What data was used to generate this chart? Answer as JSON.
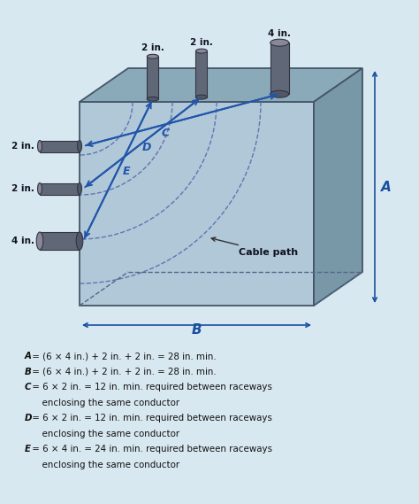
{
  "bg_color": "#d8e8f0",
  "formula_lines": [
    [
      "italic",
      "A",
      " = (6 × 4 in.) + 2 in. + 2 in. = 28 in. min."
    ],
    [
      "italic",
      "B",
      " = (6 × 4 in.) + 2 in. + 2 in. = 28 in. min."
    ],
    [
      "italic",
      "C",
      " = 6 × 2 in. = 12 in. min. required between raceways"
    ],
    [
      "normal",
      "",
      "      enclosing the same conductor"
    ],
    [
      "italic",
      "D",
      " = 6 × 2 in. = 12 in. min. required between raceways"
    ],
    [
      "normal",
      "",
      "      enclosing the same conductor"
    ],
    [
      "italic",
      "E",
      " = 6 × 4 in. = 24 in. min. required between raceways"
    ],
    [
      "normal",
      "",
      "      enclosing the same conductor"
    ]
  ],
  "top_conduit_labels": [
    "2 in.",
    "2 in.",
    "4 in."
  ],
  "left_conduit_labels": [
    "2 in.",
    "2 in.",
    "4 in."
  ],
  "arrow_color": "#2255aa",
  "dim_color": "#1a4fa0",
  "arc_color": "#5566aa"
}
